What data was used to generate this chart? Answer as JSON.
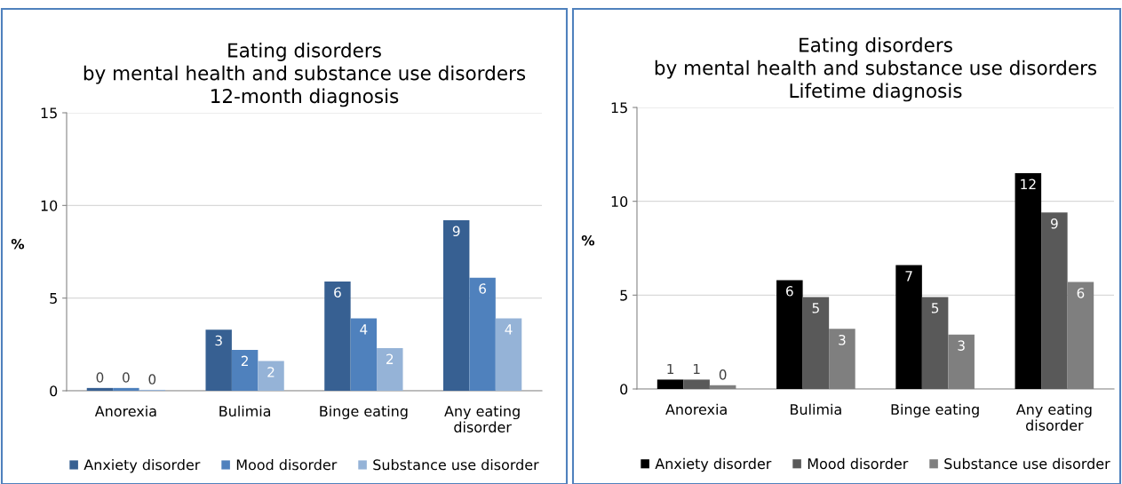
{
  "chart_data": [
    {
      "type": "bar",
      "title": "Eating disorders\nby mental health and substance use disorders\n12-month diagnosis",
      "ylabel": "%",
      "categories": [
        "Anorexia",
        "Bulimia",
        "Binge eating",
        "Any eating\ndisorder"
      ],
      "series": [
        {
          "name": "Anxiety disorder",
          "color": "#376092",
          "values": [
            0.15,
            3.3,
            5.9,
            9.2
          ],
          "value_labels": [
            "0",
            "3",
            "6",
            "9"
          ]
        },
        {
          "name": "Mood disorder",
          "color": "#4f81bd",
          "values": [
            0.15,
            2.2,
            3.9,
            6.1
          ],
          "value_labels": [
            "0",
            "2",
            "4",
            "6"
          ]
        },
        {
          "name": "Substance use disorder",
          "color": "#95b3d7",
          "values": [
            0.05,
            1.6,
            2.3,
            3.9
          ],
          "value_labels": [
            "0",
            "2",
            "2",
            "4"
          ]
        }
      ],
      "ylim": [
        0,
        15
      ],
      "yticks": [
        0,
        5,
        10,
        15
      ],
      "grid": "y",
      "legend": "bottom"
    },
    {
      "type": "bar",
      "title": "Eating disorders\nby mental health and substance use disorders\nLifetime diagnosis",
      "ylabel": "%",
      "categories": [
        "Anorexia",
        "Bulimia",
        "Binge eating",
        "Any eating\ndisorder"
      ],
      "series": [
        {
          "name": "Anxiety disorder",
          "color": "#000000",
          "values": [
            0.5,
            5.8,
            6.6,
            11.5
          ],
          "value_labels": [
            "1",
            "6",
            "7",
            "12"
          ]
        },
        {
          "name": "Mood disorder",
          "color": "#595959",
          "values": [
            0.5,
            4.9,
            4.9,
            9.4
          ],
          "value_labels": [
            "1",
            "5",
            "5",
            "9"
          ]
        },
        {
          "name": "Substance use disorder",
          "color": "#7f7f7f",
          "values": [
            0.2,
            3.2,
            2.9,
            5.7
          ],
          "value_labels": [
            "0",
            "3",
            "3",
            "6"
          ]
        }
      ],
      "ylim": [
        0,
        15
      ],
      "yticks": [
        0,
        5,
        10,
        15
      ],
      "grid": "y",
      "legend": "bottom"
    }
  ]
}
